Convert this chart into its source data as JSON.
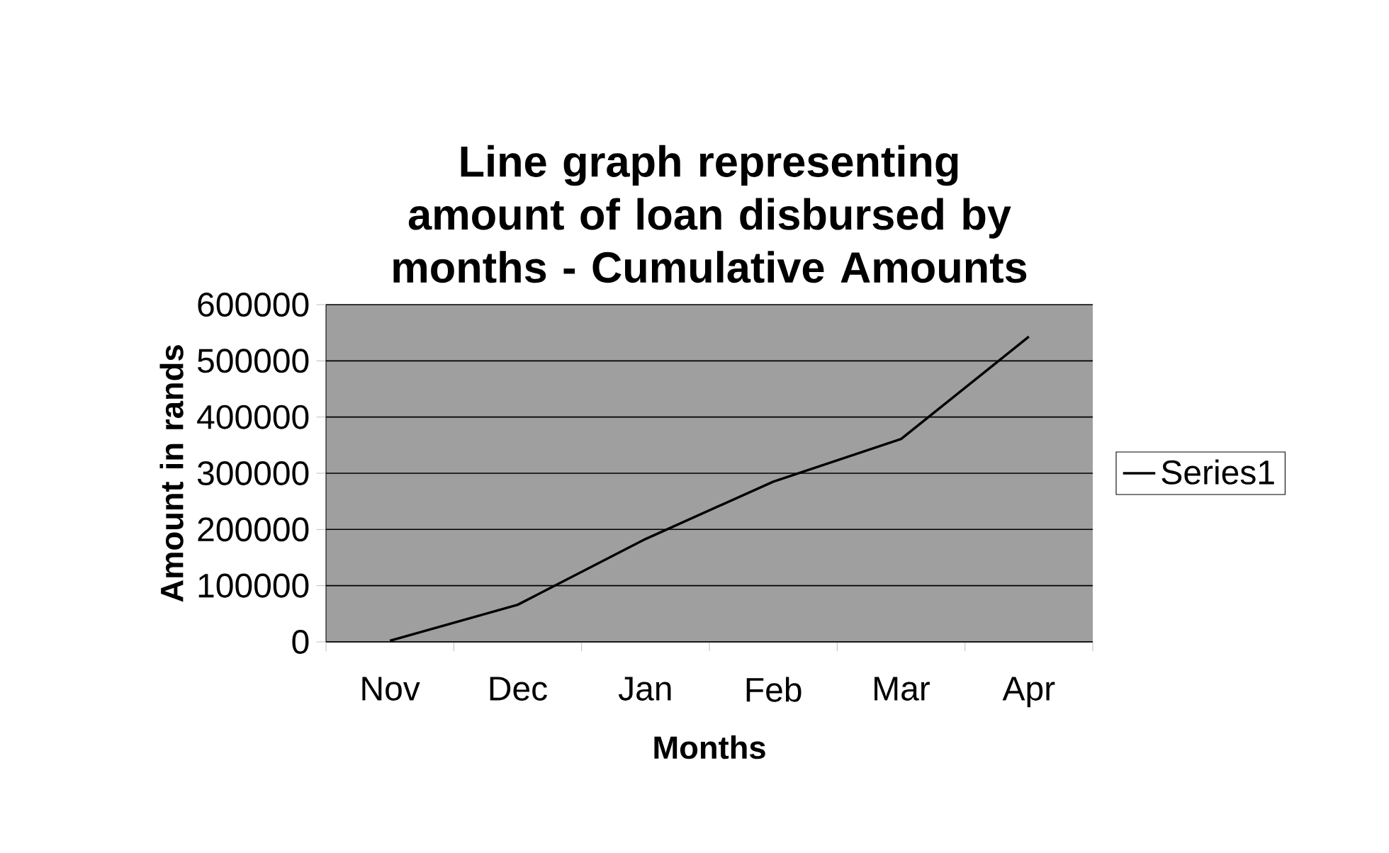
{
  "chart_data": {
    "type": "line",
    "title": "Line graph representing amount of loan disbursed by months - Cumulative Amounts",
    "xlabel": "Months",
    "ylabel": "Amount in rands",
    "categories": [
      "Nov",
      "Dec",
      "Jan",
      "Feb",
      "Mar",
      "Apr"
    ],
    "series": [
      {
        "name": "Series1",
        "color": "#000000",
        "values": [
          2000,
          66000,
          183000,
          285000,
          361000,
          543000
        ]
      }
    ],
    "ylim": [
      0,
      600000
    ],
    "yticks": [
      0,
      100000,
      200000,
      300000,
      400000,
      500000,
      600000
    ],
    "grid": "y",
    "legend": "right",
    "marker": "none"
  }
}
